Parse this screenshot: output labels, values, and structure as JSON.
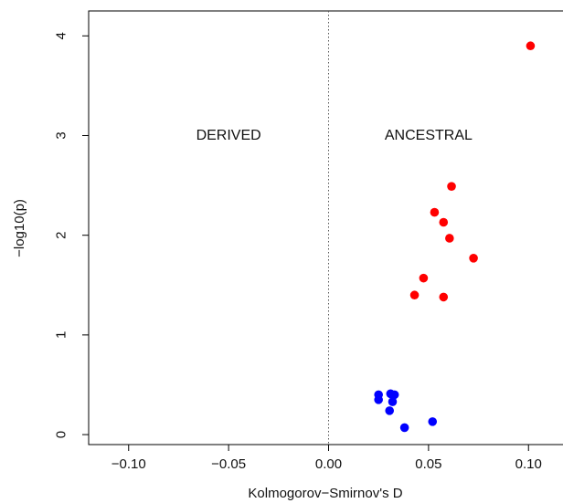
{
  "chart_data": {
    "type": "scatter",
    "xlabel": "Kolmogorov−Smirnov's D",
    "ylabel": "−log10(p)",
    "xlim": [
      -0.12,
      0.12
    ],
    "ylim": [
      -0.1,
      4.25
    ],
    "x_ticks": [
      -0.1,
      -0.05,
      0.0,
      0.05,
      0.1
    ],
    "x_tick_labels": [
      "−0.10",
      "−0.05",
      "0.00",
      "0.05",
      "0.10"
    ],
    "y_ticks": [
      0,
      1,
      2,
      3,
      4
    ],
    "y_tick_labels": [
      "0",
      "1",
      "2",
      "3",
      "4"
    ],
    "reference_line": {
      "x": 0.0,
      "style": "dotted"
    },
    "annotations": [
      {
        "text": "DERIVED",
        "x": -0.05,
        "y": 3.0
      },
      {
        "text": "ANCESTRAL",
        "x": 0.05,
        "y": 3.0
      }
    ],
    "series": [
      {
        "color": "#ff0000",
        "points": [
          {
            "x": 0.101,
            "y": 3.9
          },
          {
            "x": 0.0615,
            "y": 2.49
          },
          {
            "x": 0.053,
            "y": 2.23
          },
          {
            "x": 0.0575,
            "y": 2.13
          },
          {
            "x": 0.0605,
            "y": 1.97
          },
          {
            "x": 0.0725,
            "y": 1.77
          },
          {
            "x": 0.0475,
            "y": 1.57
          },
          {
            "x": 0.043,
            "y": 1.4
          },
          {
            "x": 0.0575,
            "y": 1.38
          }
        ]
      },
      {
        "color": "#0000ff",
        "points": [
          {
            "x": 0.025,
            "y": 0.4
          },
          {
            "x": 0.025,
            "y": 0.35
          },
          {
            "x": 0.031,
            "y": 0.41
          },
          {
            "x": 0.033,
            "y": 0.4
          },
          {
            "x": 0.032,
            "y": 0.33
          },
          {
            "x": 0.0305,
            "y": 0.24
          },
          {
            "x": 0.052,
            "y": 0.13
          },
          {
            "x": 0.038,
            "y": 0.07
          }
        ]
      }
    ]
  }
}
